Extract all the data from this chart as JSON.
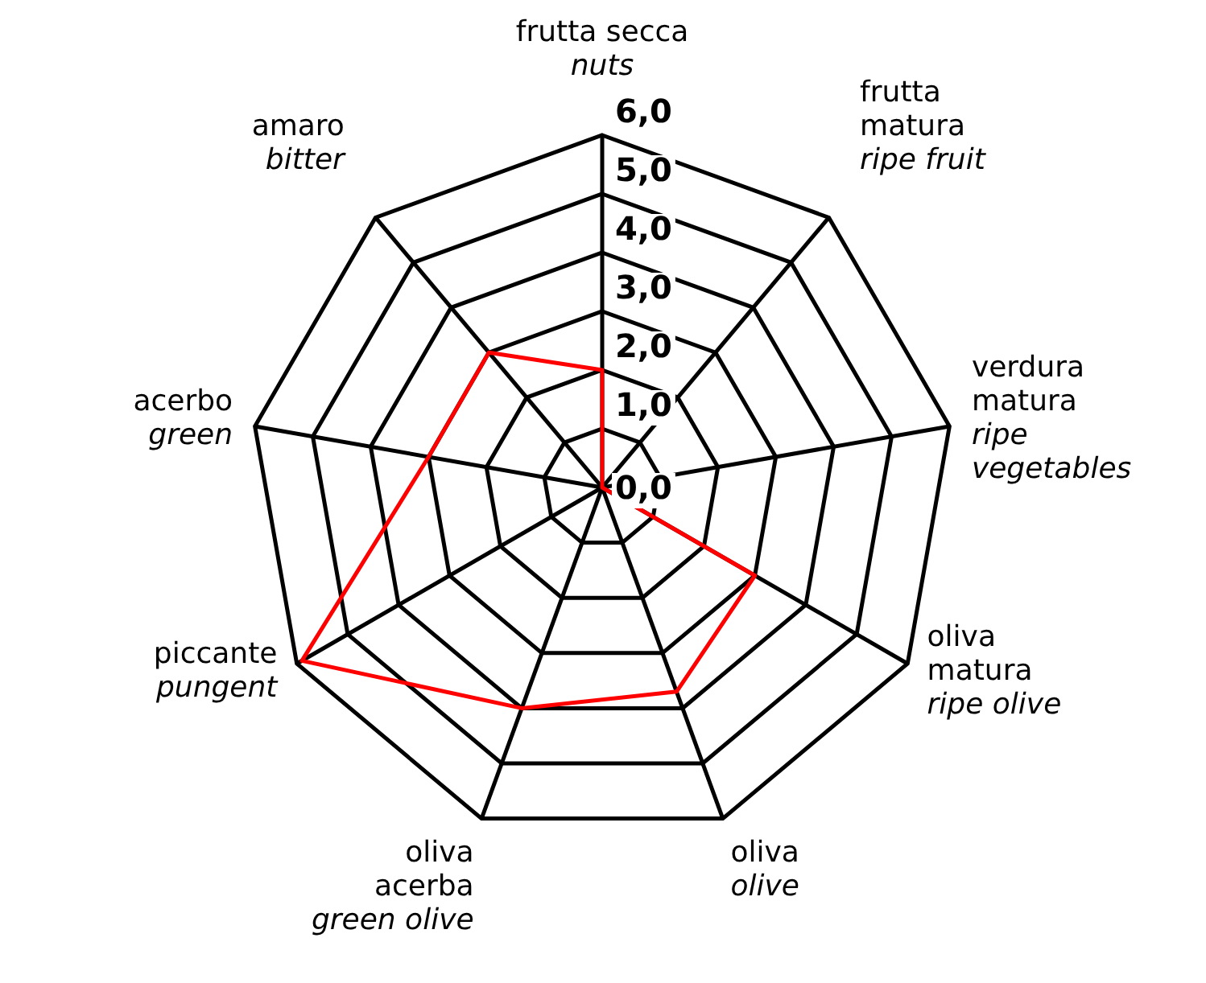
{
  "chart_data": {
    "type": "radar",
    "categories": [
      "frutta secca\nnuts",
      "frutta\nmatura\nripe fruit",
      "verdura\nmatura\nripe\nvegetables",
      "oliva\nmatura\nripe olive",
      "oliva\nolive",
      "oliva\nacerba\ngreen olive",
      "piccante\npungent",
      "acerbo\ngreen",
      "amaro\nbitter"
    ],
    "series": [
      {
        "color": "#ff0000",
        "values": [
          2,
          0,
          0,
          3,
          3.7,
          4,
          5.9,
          3,
          3
        ]
      }
    ],
    "ylim": [
      0,
      6
    ],
    "yticks": [
      {
        "value": 0,
        "label": "0,0"
      },
      {
        "value": 1,
        "label": "1,0"
      },
      {
        "value": 2,
        "label": "2,0"
      },
      {
        "value": 3,
        "label": "3,0"
      },
      {
        "value": 4,
        "label": "4,0"
      },
      {
        "value": 5,
        "label": "5,0"
      },
      {
        "value": 6,
        "label": "6,0"
      }
    ],
    "grid": true,
    "legend": false,
    "marker": "none",
    "line_style": "solid"
  }
}
